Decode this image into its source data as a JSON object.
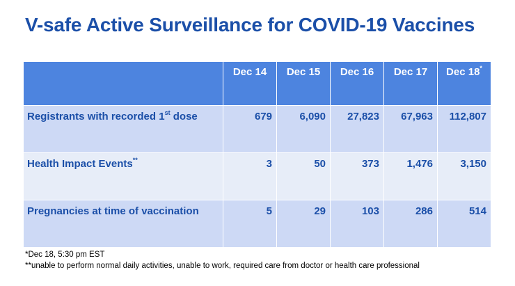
{
  "title": "V-safe Active Surveillance for COVID-19 Vaccines",
  "table": {
    "columns": [
      "Dec 14",
      "Dec 15",
      "Dec 16",
      "Dec 17",
      "Dec 18"
    ],
    "last_column_marker": "*",
    "rows": [
      {
        "label_main": "Registrants with recorded 1",
        "label_sup": "st",
        "label_tail": " dose",
        "values": [
          "679",
          "6,090",
          "27,823",
          "67,963",
          "112,807"
        ]
      },
      {
        "label_main": "Health Impact Events",
        "label_sup": "**",
        "label_tail": "",
        "values": [
          "3",
          "50",
          "373",
          "1,476",
          "3,150"
        ]
      },
      {
        "label_main": "Pregnancies at time of vaccination",
        "label_sup": "",
        "label_tail": "",
        "values": [
          "5",
          "29",
          "103",
          "286",
          "514"
        ]
      }
    ]
  },
  "footnotes": [
    "*Dec 18, 5:30 pm EST",
    "**unable to perform normal daily activities, unable to work, required care from doctor or health care professional"
  ],
  "colors": {
    "title": "#1b4fa8",
    "header_bg": "#4d84df",
    "row_dark": "#cdd9f5",
    "row_light": "#e7edf8"
  }
}
